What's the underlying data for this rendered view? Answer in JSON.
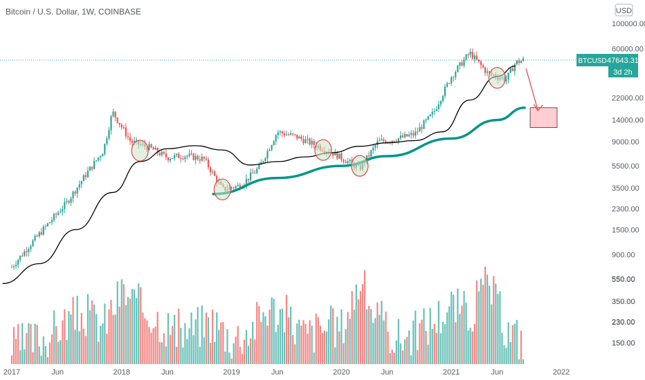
{
  "chart_data": {
    "type": "line",
    "title": "Bitcoin / U.S. Dollar, 1W, COINBASE",
    "symbol": "BTCUSD",
    "last_price": "47643.31",
    "countdown": "3d 2h",
    "currency": "USD",
    "y_scale": "log",
    "ylim": [
      120,
      170000
    ],
    "y_ticks": [
      "100000.00",
      "60000.00",
      "22000.00",
      "14000.00",
      "9000.00",
      "5500.00",
      "3500.00",
      "2300.00",
      "1500.00",
      "900.00",
      "550.00",
      "350.00",
      "230.00",
      "150.00"
    ],
    "x_ticks": [
      "2017",
      "Jun",
      "2018",
      "Jun",
      "2019",
      "Jun",
      "2020",
      "Jun",
      "2021",
      "Jun",
      "2022"
    ],
    "price_series": {
      "name": "",
      "x": [
        "2017-01",
        "2017-03",
        "2017-05",
        "2017-07",
        "2017-09",
        "2017-11",
        "2017-12",
        "2018-02",
        "2018-04",
        "2018-06",
        "2018-08",
        "2018-10",
        "2018-12",
        "2019-02",
        "2019-04",
        "2019-06",
        "2019-08",
        "2019-10",
        "2019-12",
        "2020-03",
        "2020-05",
        "2020-07",
        "2020-09",
        "2020-11",
        "2021-01",
        "2021-03",
        "2021-05",
        "2021-07",
        "2021-08",
        "2021-09"
      ],
      "y": [
        700,
        1100,
        1700,
        2600,
        4500,
        7500,
        16500,
        9000,
        8000,
        6500,
        6800,
        6300,
        3400,
        3700,
        5300,
        11000,
        10000,
        8500,
        7200,
        5200,
        9000,
        9500,
        10500,
        16000,
        34000,
        55000,
        36000,
        32000,
        45000,
        47643
      ]
    },
    "moving_average_series": {
      "name": "",
      "x": [
        "2016-12",
        "2017-04",
        "2017-08",
        "2017-12",
        "2018-03",
        "2018-06",
        "2018-09",
        "2018-12",
        "2019-03",
        "2019-06",
        "2019-09",
        "2019-12",
        "2020-03",
        "2020-06",
        "2020-09",
        "2020-12",
        "2021-03",
        "2021-06",
        "2021-08"
      ],
      "y": [
        500,
        750,
        1500,
        3200,
        6000,
        7800,
        8300,
        7600,
        5600,
        6000,
        6600,
        7200,
        8200,
        8800,
        9200,
        11000,
        21000,
        34000,
        42000
      ]
    },
    "trendline": {
      "name": "",
      "x": [
        "2018-11",
        "2019-06",
        "2020-01",
        "2020-06",
        "2021-01",
        "2021-06",
        "2021-09"
      ],
      "y": [
        3100,
        4300,
        5500,
        6700,
        9600,
        14000,
        18000
      ]
    },
    "highlight_circles": [
      {
        "x": "2018-03",
        "y": 7500
      },
      {
        "x": "2018-12",
        "y": 3400
      },
      {
        "x": "2019-11",
        "y": 7600
      },
      {
        "x": "2020-03",
        "y": 5500
      },
      {
        "x": "2021-06",
        "y": 33000
      }
    ],
    "projection": {
      "from_x": "2021-09",
      "from_y": 40000,
      "to_x": "2021-10",
      "to_y": 17000
    },
    "target_zone": {
      "x_start": "2021-09",
      "x_end": "2022-01",
      "y_low": 12000,
      "y_high": 18000
    },
    "volume_series": {
      "name": "",
      "x": [
        "2017-01",
        "2017-03",
        "2017-05",
        "2017-07",
        "2017-09",
        "2017-11",
        "2018-01",
        "2018-03",
        "2018-05",
        "2018-07",
        "2018-09",
        "2018-11",
        "2019-01",
        "2019-03",
        "2019-05",
        "2019-07",
        "2019-09",
        "2019-11",
        "2020-01",
        "2020-03",
        "2020-05",
        "2020-07",
        "2020-09",
        "2020-11",
        "2021-01",
        "2021-03",
        "2021-05",
        "2021-07",
        "2021-09"
      ],
      "y": [
        160,
        180,
        200,
        260,
        290,
        240,
        430,
        330,
        270,
        210,
        230,
        260,
        190,
        220,
        330,
        280,
        200,
        230,
        230,
        520,
        260,
        190,
        210,
        260,
        340,
        290,
        520,
        220,
        180
      ]
    },
    "volume_ticks": [
      "550.00",
      "350.00",
      "230.00",
      "150.00"
    ],
    "colors": {
      "up": "#26a69a",
      "down": "#ef5350",
      "ma": "#000000",
      "trend": "#009688",
      "circle": "#e0524f",
      "zone_fill": "#ffcdd2",
      "badge": "#26a69a"
    }
  }
}
